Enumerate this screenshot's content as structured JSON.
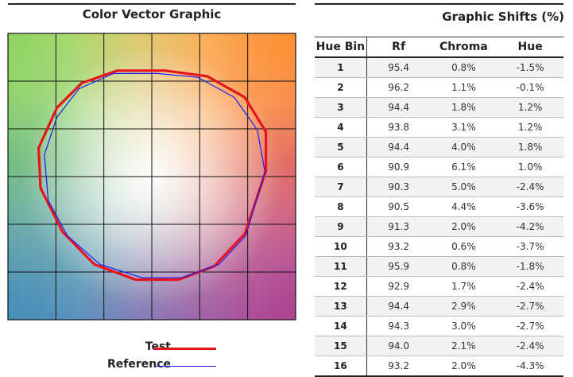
{
  "vector_graphic": {
    "title": "Color Vector Graphic",
    "legend": [
      {
        "label": "Test",
        "color": "#e8141c"
      },
      {
        "label": "Reference",
        "color": "#1a1aff"
      }
    ]
  },
  "table": {
    "title": "Graphic Shifts (%)",
    "headers": [
      "Hue Bin",
      "Rf",
      "Chroma",
      "Hue"
    ],
    "rows": [
      [
        "1",
        "95.4",
        "0.8%",
        "-1.5%"
      ],
      [
        "2",
        "96.2",
        "1.1%",
        "-0.1%"
      ],
      [
        "3",
        "94.4",
        "1.8%",
        "1.2%"
      ],
      [
        "4",
        "93.8",
        "3.1%",
        "1.2%"
      ],
      [
        "5",
        "94.4",
        "4.0%",
        "1.8%"
      ],
      [
        "6",
        "90.9",
        "6.1%",
        "1.0%"
      ],
      [
        "7",
        "90.3",
        "5.0%",
        "-2.4%"
      ],
      [
        "8",
        "90.5",
        "4.4%",
        "-3.6%"
      ],
      [
        "9",
        "91.3",
        "2.0%",
        "-4.2%"
      ],
      [
        "10",
        "93.2",
        "0.6%",
        "-3.7%"
      ],
      [
        "11",
        "95.9",
        "0.8%",
        "-1.8%"
      ],
      [
        "12",
        "92.9",
        "1.7%",
        "-2.4%"
      ],
      [
        "13",
        "94.4",
        "2.9%",
        "-2.7%"
      ],
      [
        "14",
        "94.3",
        "3.0%",
        "-2.7%"
      ],
      [
        "15",
        "94.0",
        "2.1%",
        "-2.4%"
      ],
      [
        "16",
        "93.2",
        "2.0%",
        "-4.3%"
      ]
    ]
  },
  "chart_data": {
    "type": "scatter",
    "title": "Color Vector Graphic",
    "x_range": [
      -1.5,
      1.5
    ],
    "y_range": [
      -1.5,
      1.5
    ],
    "grid": true,
    "legend_position": "bottom-center",
    "series": [
      {
        "name": "Test",
        "color": "#e8141c",
        "x": [
          1.19,
          1.19,
          0.97,
          0.58,
          0.14,
          -0.36,
          -0.73,
          -0.99,
          -1.18,
          -1.16,
          -0.93,
          -0.6,
          -0.17,
          0.28,
          0.65,
          0.97
        ],
        "y": [
          0.06,
          0.47,
          0.83,
          1.05,
          1.11,
          1.11,
          0.98,
          0.72,
          0.3,
          -0.12,
          -0.58,
          -0.92,
          -1.08,
          -1.08,
          -0.94,
          -0.6
        ]
      },
      {
        "name": "Reference",
        "color": "#1a1aff",
        "x": [
          1.18,
          1.1,
          0.86,
          0.48,
          0.06,
          -0.4,
          -0.76,
          -0.99,
          -1.12,
          -1.08,
          -0.88,
          -0.54,
          -0.1,
          0.31,
          0.7,
          0.98
        ],
        "y": [
          0.05,
          0.49,
          0.83,
          1.04,
          1.08,
          1.08,
          0.92,
          0.62,
          0.23,
          -0.25,
          -0.62,
          -0.92,
          -1.06,
          -1.06,
          -0.92,
          -0.62
        ]
      }
    ]
  }
}
